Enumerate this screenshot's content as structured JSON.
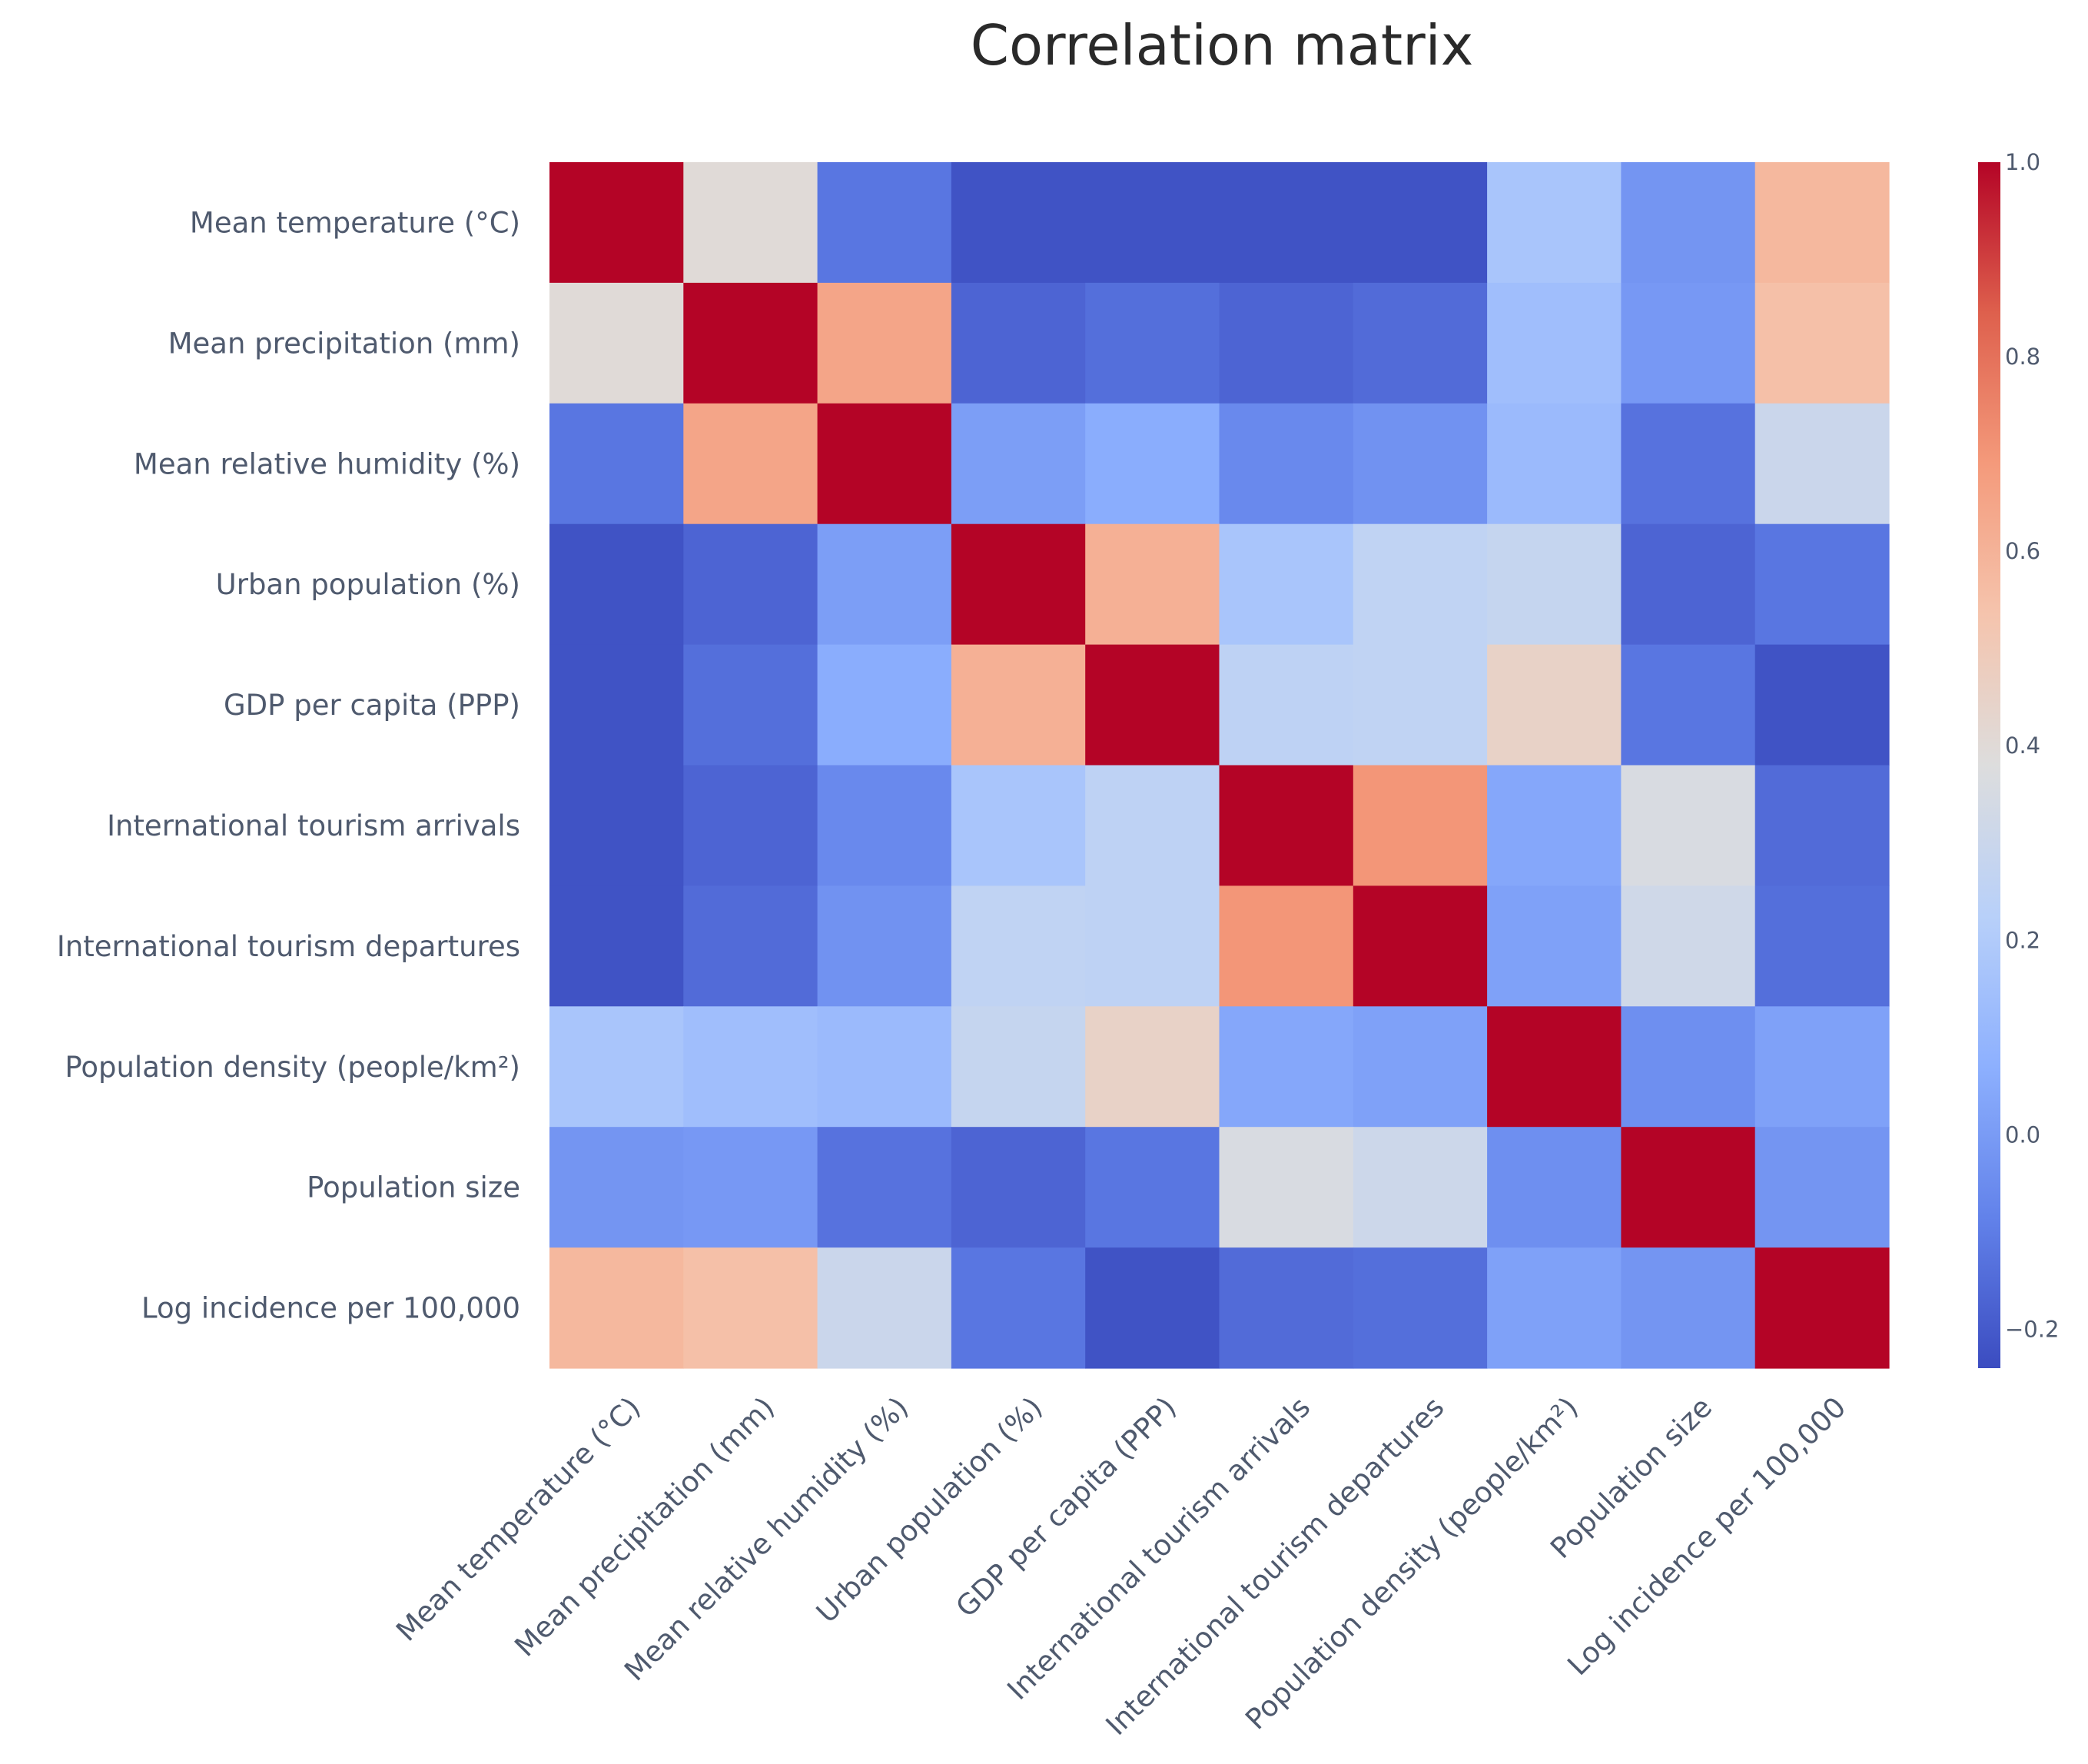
{
  "chart_data": {
    "type": "heatmap",
    "title": "Correlation matrix",
    "labels": [
      "Mean temperature (°C)",
      "Mean precipitation (mm)",
      "Mean relative humidity (%)",
      "Urban population (%)",
      "GDP per capita (PPP)",
      "International tourism arrivals",
      "International tourism departures",
      "Population density (people/km²)",
      "Population size",
      "Log incidence per 100,000"
    ],
    "matrix": [
      [
        1.0,
        0.4,
        -0.12,
        -0.22,
        -0.22,
        -0.22,
        -0.22,
        0.17,
        -0.02,
        0.58
      ],
      [
        0.4,
        1.0,
        0.65,
        -0.17,
        -0.14,
        -0.17,
        -0.15,
        0.14,
        -0.01,
        0.55
      ],
      [
        -0.12,
        0.65,
        1.0,
        0.01,
        0.06,
        -0.06,
        -0.03,
        0.12,
        -0.13,
        0.3
      ],
      [
        -0.22,
        -0.17,
        0.01,
        1.0,
        0.61,
        0.17,
        0.26,
        0.28,
        -0.17,
        -0.12
      ],
      [
        -0.22,
        -0.14,
        0.06,
        0.61,
        1.0,
        0.25,
        0.26,
        0.45,
        -0.12,
        -0.22
      ],
      [
        -0.22,
        -0.17,
        -0.06,
        0.17,
        0.25,
        1.0,
        0.7,
        0.04,
        0.36,
        -0.15
      ],
      [
        -0.22,
        -0.15,
        -0.03,
        0.26,
        0.25,
        0.7,
        1.0,
        0.02,
        0.32,
        -0.14
      ],
      [
        0.17,
        0.14,
        0.12,
        0.28,
        0.45,
        0.04,
        0.02,
        1.0,
        -0.04,
        0.02
      ],
      [
        -0.02,
        -0.01,
        -0.13,
        -0.17,
        -0.12,
        0.36,
        0.31,
        -0.04,
        1.0,
        -0.02
      ],
      [
        0.58,
        0.55,
        0.3,
        -0.12,
        -0.22,
        -0.15,
        -0.14,
        0.02,
        -0.02,
        1.0
      ]
    ],
    "zmin": -0.24,
    "zmax": 1.0,
    "colorscale": "coolwarm",
    "colorbar_ticks": [
      1.0,
      0.8,
      0.6,
      0.4,
      0.2,
      0.0,
      -0.2
    ],
    "colorbar_tick_labels": [
      "1.0",
      "0.8",
      "0.6",
      "0.4",
      "0.2",
      "0.0",
      "−0.2"
    ]
  }
}
